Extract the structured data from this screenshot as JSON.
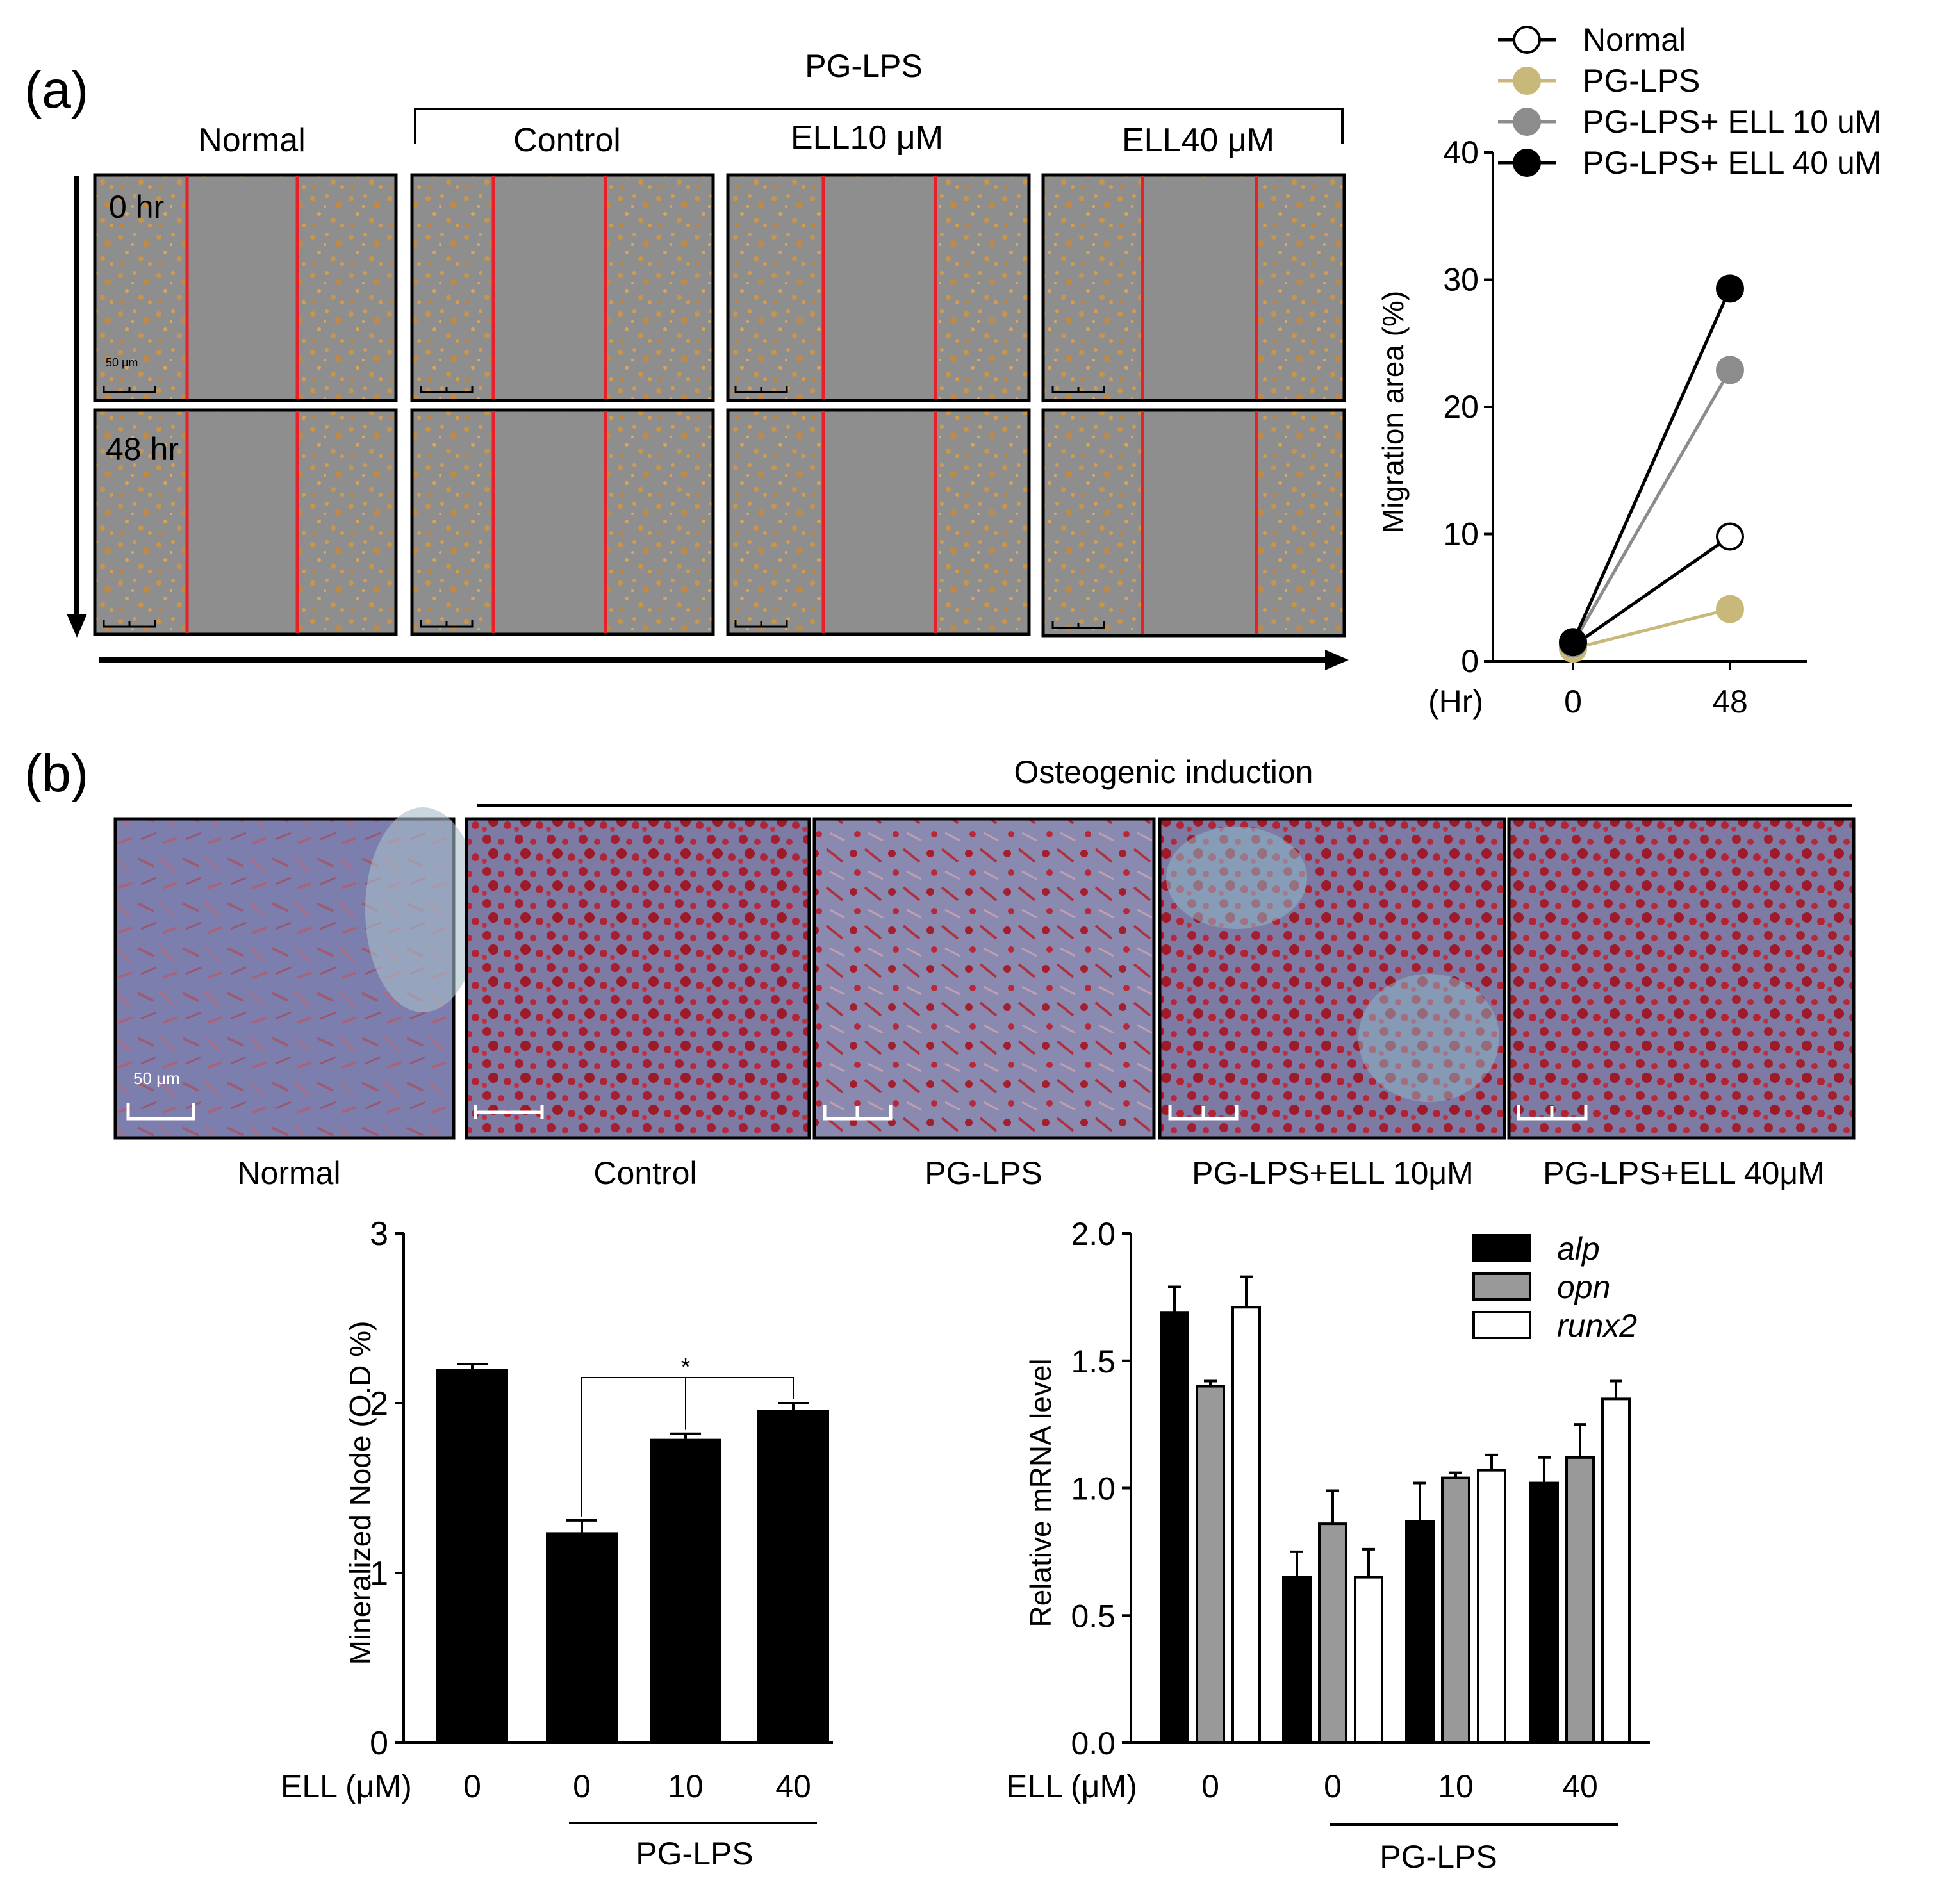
{
  "panel_a": {
    "label": "(a)",
    "group_header": "PG-LPS",
    "columns": [
      "Normal",
      "Control",
      "ELL10 μM",
      "ELL40 μM"
    ],
    "rows": [
      "0 hr",
      "48 hr"
    ],
    "scale_bar": "50 μm"
  },
  "panel_b": {
    "label": "(b)",
    "group_header": "Osteogenic induction",
    "columns": [
      "Normal",
      "Control",
      "PG-LPS",
      "PG-LPS+ELL 10μM",
      "PG-LPS+ELL 40μM"
    ],
    "scale_bar": "50 μm"
  },
  "chart_data": [
    {
      "type": "line",
      "id": "migration",
      "ylabel": "Migration area (%)",
      "xlabel": "(Hr)",
      "x": [
        0,
        48
      ],
      "xticks": [
        "0",
        "48"
      ],
      "ylim": [
        0,
        40
      ],
      "yticks": [
        0,
        10,
        20,
        30,
        40
      ],
      "series": [
        {
          "name": "Normal",
          "values": [
            1.2,
            9.8
          ],
          "color": "#ffffff",
          "edge": "#000000",
          "line": "#000000"
        },
        {
          "name": "PG-LPS",
          "values": [
            1.0,
            4.1
          ],
          "color": "#c8b97a",
          "edge": "#c8b97a",
          "line": "#c8b97a"
        },
        {
          "name": "PG-LPS+ ELL 10 uM",
          "values": [
            1.4,
            22.9
          ],
          "color": "#8c8c8c",
          "edge": "#8c8c8c",
          "line": "#8c8c8c"
        },
        {
          "name": "PG-LPS+ ELL 40 uM",
          "values": [
            1.5,
            29.3
          ],
          "color": "#000000",
          "edge": "#000000",
          "line": "#000000"
        }
      ]
    },
    {
      "type": "bar",
      "id": "mineralized",
      "ylabel": "Mineralized Node (O.D %)",
      "xlabel_prefix": "ELL (μM)",
      "categories": [
        "0",
        "0",
        "10",
        "40"
      ],
      "values": [
        2.2,
        1.24,
        1.79,
        1.96
      ],
      "errors": [
        0.03,
        0.07,
        0.03,
        0.04
      ],
      "ylim": [
        0,
        3
      ],
      "yticks": [
        0,
        1,
        2,
        3
      ],
      "group_label": "PG-LPS",
      "significance": "*",
      "color": "#000000"
    },
    {
      "type": "bar",
      "id": "mrna",
      "ylabel": "Relative mRNA level",
      "xlabel_prefix": "ELL (μM)",
      "categories": [
        "0",
        "0",
        "10",
        "40"
      ],
      "ylim": [
        0,
        2.0
      ],
      "yticks": [
        "0.0",
        "0.5",
        "1.0",
        "1.5",
        "2.0"
      ],
      "group_label": "PG-LPS",
      "series": [
        {
          "name": "alp",
          "color": "#000000",
          "values": [
            1.69,
            0.65,
            0.87,
            1.02
          ],
          "errors": [
            0.1,
            0.1,
            0.15,
            0.1
          ]
        },
        {
          "name": "opn",
          "color": "#999999",
          "values": [
            1.4,
            0.86,
            1.04,
            1.12
          ],
          "errors": [
            0.02,
            0.13,
            0.02,
            0.13
          ]
        },
        {
          "name": "runx2",
          "color": "#ffffff",
          "values": [
            1.71,
            0.65,
            1.07,
            1.35
          ],
          "errors": [
            0.12,
            0.11,
            0.06,
            0.07
          ]
        }
      ]
    }
  ]
}
